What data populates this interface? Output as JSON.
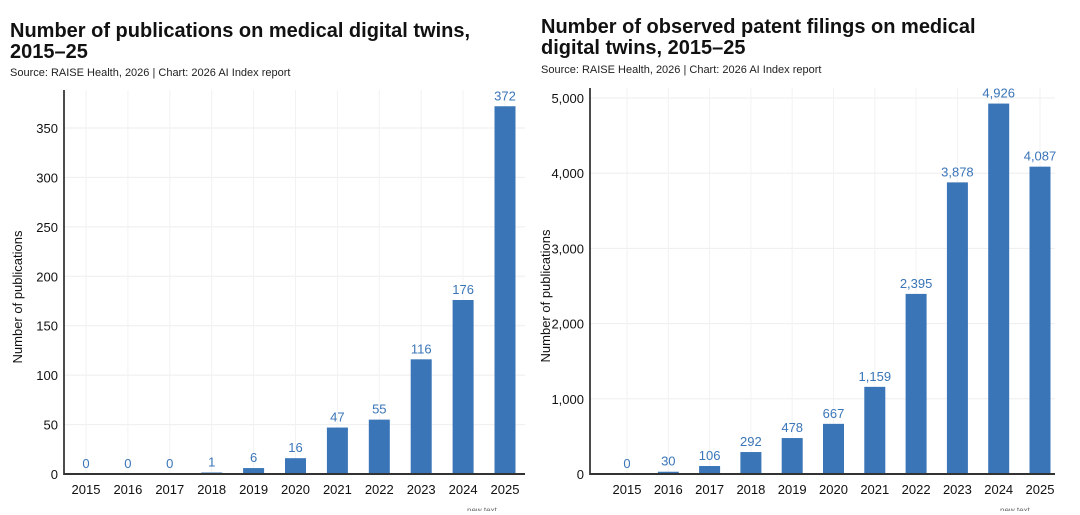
{
  "chart_data": [
    {
      "type": "bar",
      "title": "Number of publications on medical digital twins, 2015–25",
      "source": "Source: RAISE Health, 2026 | Chart: 2026 AI Index report",
      "xlabel": "",
      "ylabel": "Number of publications",
      "categories": [
        "2015",
        "2016",
        "2017",
        "2018",
        "2019",
        "2020",
        "2021",
        "2022",
        "2023",
        "2024",
        "2025"
      ],
      "values": [
        0,
        0,
        0,
        1,
        6,
        16,
        47,
        55,
        116,
        176,
        372
      ],
      "data_labels": [
        "0",
        "0",
        "0",
        "1",
        "6",
        "16",
        "47",
        "55",
        "116",
        "176",
        "372"
      ],
      "yticks": [
        0,
        50,
        100,
        150,
        200,
        250,
        300,
        350
      ],
      "ytick_labels": [
        "0",
        "50",
        "100",
        "150",
        "200",
        "250",
        "300",
        "350"
      ],
      "ylim": [
        0,
        380
      ],
      "grid": true,
      "bar_color": "#3a75b8",
      "label_color": "#3a75b8",
      "footnote": "new text"
    },
    {
      "type": "bar",
      "title": "Number of observed patent filings on medical digital twins, 2015–25",
      "source": "Source: RAISE Health, 2026 | Chart: 2026 AI Index report",
      "xlabel": "",
      "ylabel": "Number of publications",
      "categories": [
        "2015",
        "2016",
        "2017",
        "2018",
        "2019",
        "2020",
        "2021",
        "2022",
        "2023",
        "2024",
        "2025"
      ],
      "values": [
        0,
        30,
        106,
        292,
        478,
        667,
        1159,
        2395,
        3878,
        4926,
        4087
      ],
      "data_labels": [
        "0",
        "30",
        "106",
        "292",
        "478",
        "667",
        "1,159",
        "2,395",
        "3,878",
        "4,926",
        "4,087"
      ],
      "yticks": [
        0,
        1000,
        2000,
        3000,
        4000,
        5000
      ],
      "ytick_labels": [
        "0",
        "1,000",
        "2,000",
        "3,000",
        "4,000",
        "5,000"
      ],
      "ylim": [
        0,
        5100
      ],
      "grid": true,
      "bar_color": "#3a75b8",
      "label_color": "#3a75b8",
      "footnote": "new text"
    }
  ]
}
